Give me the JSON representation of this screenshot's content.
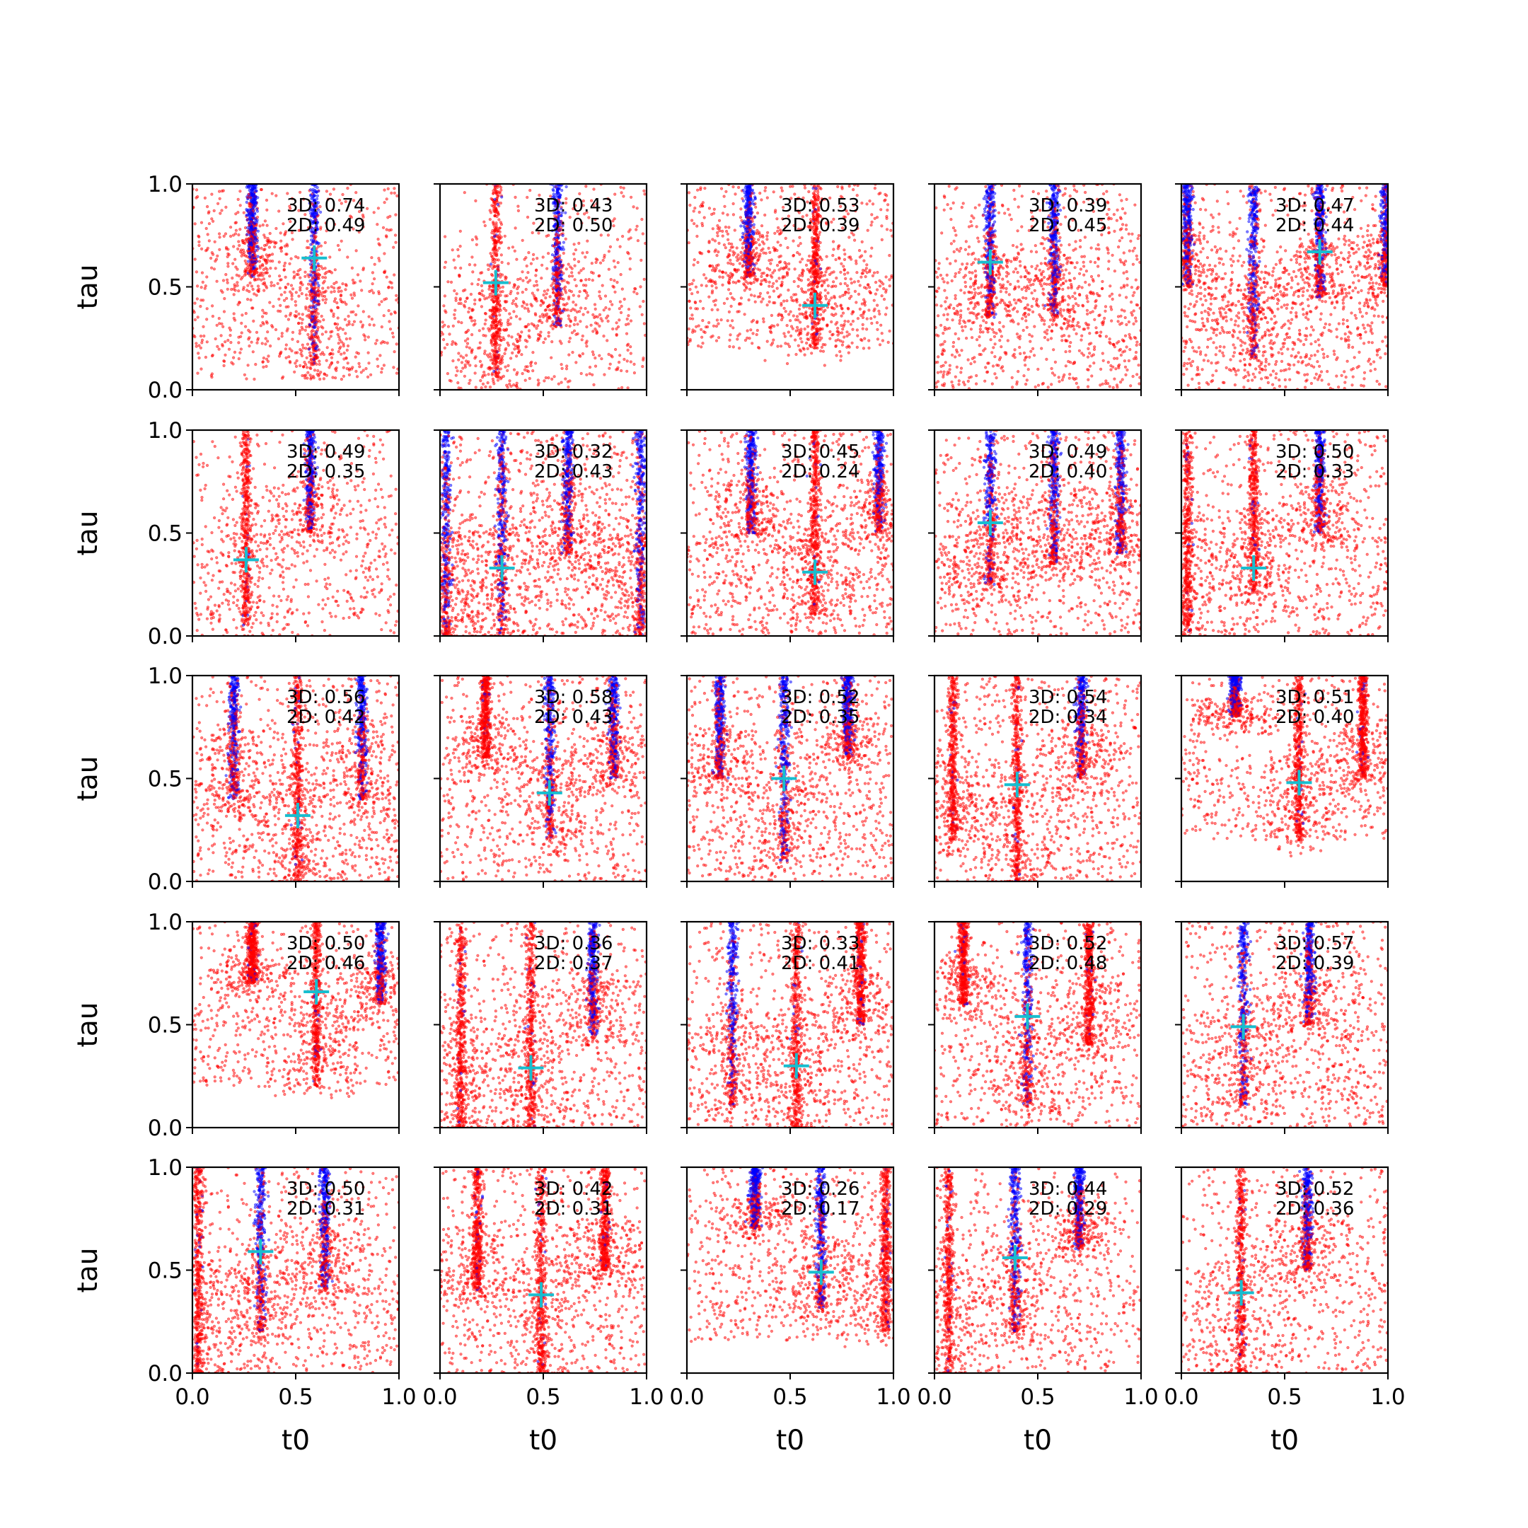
{
  "chart_data": {
    "type": "scatter",
    "layout": {
      "rows": 5,
      "cols": 5
    },
    "xlabel": "t0",
    "ylabel": "tau",
    "xlim": [
      0,
      1
    ],
    "ylim": [
      0,
      1
    ],
    "xticks": [
      "0.0",
      "0.5",
      "1.0"
    ],
    "yticks": [
      "0.0",
      "0.5",
      "1.0"
    ],
    "colors": {
      "primary": "#ff0000",
      "secondary": "#0000ff",
      "marker": "#17becf",
      "axes": "#000000",
      "background": "#ffffff"
    },
    "panels": [
      {
        "ann1": "3D: 0.74",
        "ann2": "2D: 0.49",
        "marker": [
          0.59,
          0.64
        ],
        "streaks": [
          [
            0.29,
            0.55,
            "b"
          ],
          [
            0.59,
            0.12,
            "b"
          ]
        ],
        "sig": 0.1,
        "scatter": 0.5,
        "ymin": 0.05
      },
      {
        "ann1": "3D: 0.43",
        "ann2": "2D: 0.50",
        "marker": [
          0.27,
          0.52
        ],
        "streaks": [
          [
            0.27,
            0.05,
            "r"
          ],
          [
            0.57,
            0.3,
            "b"
          ]
        ],
        "sig": 0.12,
        "scatter": 0.4,
        "ymin": 0.0
      },
      {
        "ann1": "3D: 0.53",
        "ann2": "2D: 0.39",
        "marker": [
          0.62,
          0.41
        ],
        "streaks": [
          [
            0.3,
            0.55,
            "b"
          ],
          [
            0.62,
            0.2,
            "r"
          ]
        ],
        "sig": 0.1,
        "scatter": 0.55,
        "ymin": 0.2
      },
      {
        "ann1": "3D: 0.39",
        "ann2": "2D: 0.45",
        "marker": [
          0.27,
          0.62
        ],
        "streaks": [
          [
            0.27,
            0.35,
            "b"
          ],
          [
            0.58,
            0.35,
            "b"
          ]
        ],
        "sig": 0.1,
        "scatter": 0.65,
        "ymin": 0.0
      },
      {
        "ann1": "3D: 0.47",
        "ann2": "2D: 0.44",
        "marker": [
          0.67,
          0.67
        ],
        "streaks": [
          [
            0.03,
            0.5,
            "b"
          ],
          [
            0.35,
            0.15,
            "b"
          ],
          [
            0.67,
            0.45,
            "b"
          ],
          [
            0.99,
            0.5,
            "b"
          ]
        ],
        "sig": 0.1,
        "scatter": 0.65,
        "ymin": 0.0
      },
      {
        "ann1": "3D: 0.49",
        "ann2": "2D: 0.35",
        "marker": [
          0.26,
          0.37
        ],
        "streaks": [
          [
            0.26,
            0.05,
            "r"
          ],
          [
            0.57,
            0.5,
            "b"
          ]
        ],
        "sig": 0.12,
        "scatter": 0.4,
        "ymin": 0.0
      },
      {
        "ann1": "3D: 0.32",
        "ann2": "2D: 0.43",
        "marker": [
          0.3,
          0.33
        ],
        "streaks": [
          [
            0.3,
            0.0,
            "b"
          ],
          [
            0.62,
            0.4,
            "b"
          ],
          [
            0.03,
            0.0,
            "b"
          ],
          [
            0.97,
            0.0,
            "b"
          ]
        ],
        "sig": 0.12,
        "scatter": 0.75,
        "ymin": 0.0
      },
      {
        "ann1": "3D: 0.45",
        "ann2": "2D: 0.24",
        "marker": [
          0.62,
          0.31
        ],
        "streaks": [
          [
            0.31,
            0.5,
            "b"
          ],
          [
            0.62,
            0.1,
            "r"
          ],
          [
            0.93,
            0.5,
            "b"
          ]
        ],
        "sig": 0.1,
        "scatter": 0.65,
        "ymin": 0.0
      },
      {
        "ann1": "3D: 0.49",
        "ann2": "2D: 0.40",
        "marker": [
          0.27,
          0.55
        ],
        "streaks": [
          [
            0.27,
            0.25,
            "b"
          ],
          [
            0.58,
            0.35,
            "b"
          ],
          [
            0.9,
            0.4,
            "b"
          ]
        ],
        "sig": 0.12,
        "scatter": 0.65,
        "ymin": 0.0
      },
      {
        "ann1": "3D: 0.50",
        "ann2": "2D: 0.33",
        "marker": [
          0.35,
          0.33
        ],
        "streaks": [
          [
            0.03,
            0.0,
            "r"
          ],
          [
            0.35,
            0.2,
            "r"
          ],
          [
            0.67,
            0.5,
            "b"
          ]
        ],
        "sig": 0.1,
        "scatter": 0.55,
        "ymin": 0.0
      },
      {
        "ann1": "3D: 0.56",
        "ann2": "2D: 0.42",
        "marker": [
          0.51,
          0.32
        ],
        "streaks": [
          [
            0.2,
            0.4,
            "b"
          ],
          [
            0.51,
            0.0,
            "r"
          ],
          [
            0.82,
            0.4,
            "b"
          ]
        ],
        "sig": 0.1,
        "scatter": 0.65,
        "ymin": 0.0
      },
      {
        "ann1": "3D: 0.58",
        "ann2": "2D: 0.43",
        "marker": [
          0.53,
          0.43
        ],
        "streaks": [
          [
            0.22,
            0.6,
            "r"
          ],
          [
            0.53,
            0.2,
            "b"
          ],
          [
            0.84,
            0.5,
            "b"
          ]
        ],
        "sig": 0.1,
        "scatter": 0.55,
        "ymin": 0.0
      },
      {
        "ann1": "3D: 0.52",
        "ann2": "2D: 0.35",
        "marker": [
          0.47,
          0.5
        ],
        "streaks": [
          [
            0.16,
            0.5,
            "b"
          ],
          [
            0.47,
            0.1,
            "b"
          ],
          [
            0.78,
            0.6,
            "b"
          ]
        ],
        "sig": 0.1,
        "scatter": 0.6,
        "ymin": 0.0
      },
      {
        "ann1": "3D: 0.54",
        "ann2": "2D: 0.34",
        "marker": [
          0.4,
          0.47
        ],
        "streaks": [
          [
            0.09,
            0.2,
            "r"
          ],
          [
            0.4,
            0.0,
            "r"
          ],
          [
            0.71,
            0.5,
            "b"
          ]
        ],
        "sig": 0.1,
        "scatter": 0.6,
        "ymin": 0.0
      },
      {
        "ann1": "3D: 0.51",
        "ann2": "2D: 0.40",
        "marker": [
          0.57,
          0.48
        ],
        "streaks": [
          [
            0.26,
            0.8,
            "b"
          ],
          [
            0.57,
            0.2,
            "r"
          ],
          [
            0.88,
            0.5,
            "r"
          ]
        ],
        "sig": 0.12,
        "scatter": 0.45,
        "ymin": 0.2
      },
      {
        "ann1": "3D: 0.50",
        "ann2": "2D: 0.46",
        "marker": [
          0.6,
          0.66
        ],
        "streaks": [
          [
            0.29,
            0.7,
            "r"
          ],
          [
            0.6,
            0.2,
            "r"
          ],
          [
            0.91,
            0.6,
            "b"
          ]
        ],
        "sig": 0.12,
        "scatter": 0.45,
        "ymin": 0.2
      },
      {
        "ann1": "3D: 0.36",
        "ann2": "2D: 0.37",
        "marker": [
          0.44,
          0.29
        ],
        "streaks": [
          [
            0.1,
            0.0,
            "r"
          ],
          [
            0.44,
            0.0,
            "r"
          ],
          [
            0.74,
            0.45,
            "b"
          ]
        ],
        "sig": 0.1,
        "scatter": 0.55,
        "ymin": 0.0
      },
      {
        "ann1": "3D: 0.33",
        "ann2": "2D: 0.41",
        "marker": [
          0.53,
          0.3
        ],
        "streaks": [
          [
            0.22,
            0.1,
            "b"
          ],
          [
            0.53,
            0.0,
            "r"
          ],
          [
            0.84,
            0.5,
            "r"
          ]
        ],
        "sig": 0.1,
        "scatter": 0.55,
        "ymin": 0.0
      },
      {
        "ann1": "3D: 0.52",
        "ann2": "2D: 0.48",
        "marker": [
          0.45,
          0.54
        ],
        "streaks": [
          [
            0.14,
            0.6,
            "r"
          ],
          [
            0.45,
            0.1,
            "b"
          ],
          [
            0.75,
            0.4,
            "r"
          ]
        ],
        "sig": 0.1,
        "scatter": 0.5,
        "ymin": 0.0
      },
      {
        "ann1": "3D: 0.57",
        "ann2": "2D: 0.39",
        "marker": [
          0.3,
          0.49
        ],
        "streaks": [
          [
            0.3,
            0.1,
            "b"
          ],
          [
            0.62,
            0.5,
            "b"
          ]
        ],
        "sig": 0.12,
        "scatter": 0.6,
        "ymin": 0.0
      },
      {
        "ann1": "3D: 0.50",
        "ann2": "2D: 0.31",
        "marker": [
          0.33,
          0.59
        ],
        "streaks": [
          [
            0.03,
            0.0,
            "r"
          ],
          [
            0.33,
            0.2,
            "b"
          ],
          [
            0.64,
            0.4,
            "b"
          ]
        ],
        "sig": 0.1,
        "scatter": 0.55,
        "ymin": 0.0
      },
      {
        "ann1": "3D: 0.42",
        "ann2": "2D: 0.31",
        "marker": [
          0.49,
          0.38
        ],
        "streaks": [
          [
            0.18,
            0.4,
            "r"
          ],
          [
            0.49,
            0.0,
            "r"
          ],
          [
            0.8,
            0.5,
            "r"
          ]
        ],
        "sig": 0.1,
        "scatter": 0.55,
        "ymin": 0.0
      },
      {
        "ann1": "3D: 0.26",
        "ann2": "2D: 0.17",
        "marker": [
          0.65,
          0.49
        ],
        "streaks": [
          [
            0.33,
            0.7,
            "b"
          ],
          [
            0.65,
            0.3,
            "b"
          ],
          [
            0.96,
            0.2,
            "r"
          ]
        ],
        "sig": 0.12,
        "scatter": 0.45,
        "ymin": 0.15
      },
      {
        "ann1": "3D: 0.44",
        "ann2": "2D: 0.29",
        "marker": [
          0.39,
          0.56
        ],
        "streaks": [
          [
            0.07,
            0.0,
            "r"
          ],
          [
            0.39,
            0.2,
            "b"
          ],
          [
            0.7,
            0.6,
            "b"
          ]
        ],
        "sig": 0.1,
        "scatter": 0.45,
        "ymin": 0.0
      },
      {
        "ann1": "3D: 0.52",
        "ann2": "2D: 0.36",
        "marker": [
          0.29,
          0.39
        ],
        "streaks": [
          [
            0.29,
            0.0,
            "r"
          ],
          [
            0.61,
            0.5,
            "b"
          ]
        ],
        "sig": 0.12,
        "scatter": 0.5,
        "ymin": 0.0
      }
    ]
  }
}
